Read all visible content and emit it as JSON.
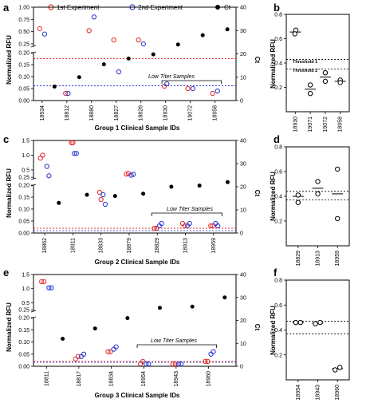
{
  "legend": {
    "first": "1st Experiment",
    "second": "2nd Experiment",
    "ct": "Ct",
    "colors": {
      "first": "#e8312f",
      "second": "#2f3fd0",
      "ct": "#000000"
    }
  },
  "chart_data": [
    {
      "id": "a",
      "panel_label": "a",
      "type": "scatter",
      "xlabel": "Group 1 Clinical Sample IDs",
      "ylabel": "Normalized RFU",
      "y2label": "Ct",
      "categories": [
        "18934",
        "18812",
        "18880",
        "18827",
        "18826",
        "18930",
        "19072",
        "18958"
      ],
      "positions": [
        0,
        2,
        4,
        6,
        8,
        10,
        12,
        14
      ],
      "lower_ylim": [
        0,
        0.2
      ],
      "upper_ylim": [
        0.2,
        1.0
      ],
      "left_ticks": [
        "0.00",
        "0.05",
        "0.10",
        "0.15",
        "0.20",
        "0.25",
        "0.50",
        "0.75",
        "1.00"
      ],
      "ct_ylim": [
        0,
        40
      ],
      "right_ticks": [
        "0",
        "10",
        "20",
        "30",
        "40"
      ],
      "first_experiment": {
        "x": [
          -0.2,
          1.9,
          3.8,
          5.8,
          7.8,
          9.9,
          11.8,
          13.8
        ],
        "y": [
          0.56,
          0.03,
          0.52,
          0.33,
          0.33,
          0.06,
          0.05,
          0.03
        ]
      },
      "second_experiment": {
        "x": [
          0.2,
          2.1,
          4.2,
          6.2,
          8.2,
          10.1,
          12.2,
          14.2
        ],
        "y": [
          0.45,
          0.03,
          0.8,
          0.12,
          0.25,
          0.07,
          0.05,
          0.04
        ]
      },
      "ct": {
        "x": [
          1,
          3,
          5,
          7,
          9,
          11,
          13,
          15
        ],
        "y": [
          6,
          10,
          15.5,
          18,
          19.8,
          24,
          28,
          30.5
        ]
      },
      "threshold_red": 0.175,
      "threshold_blue": 0.065,
      "annotation": "Low Titer Samples",
      "bracket_range": [
        9.7,
        14.5
      ]
    },
    {
      "id": "b",
      "panel_label": "b",
      "type": "scatter",
      "ylabel": "Normalized RFU",
      "categories": [
        "18930",
        "19071",
        "19072",
        "18958"
      ],
      "ylim": [
        0,
        0.8
      ],
      "ticks": [
        "0.2",
        "0.4",
        "0.6",
        "0.8"
      ],
      "points": {
        "x": [
          0.03,
          -0.03,
          1,
          1,
          2,
          2,
          3,
          3
        ],
        "y": [
          0.67,
          0.64,
          0.22,
          0.15,
          0.32,
          0.25,
          0.26,
          0.24
        ]
      },
      "means": [
        0.655,
        0.185,
        0.285,
        0.25
      ],
      "threshold_1": 0.43,
      "threshold_2": 0.35,
      "threshold_labels": [
        "Threshold 1",
        "Threshold 2"
      ]
    },
    {
      "id": "c",
      "panel_label": "c",
      "type": "scatter",
      "xlabel": "Group 2 Clinical Sample IDs",
      "ylabel": "Normalized RFU",
      "y2label": "Ct",
      "categories": [
        "18862",
        "18911",
        "18833",
        "18879",
        "18829",
        "18913",
        "18959"
      ],
      "positions": [
        0,
        2,
        4,
        6,
        8,
        10,
        12
      ],
      "lower_ylim": [
        0,
        0.2
      ],
      "upper_ylim": [
        0.2,
        1.5
      ],
      "left_ticks": [
        "0.00",
        "0.05",
        "0.10",
        "0.15",
        "0.20",
        "0.25",
        "0.5",
        "1.0",
        "1.5"
      ],
      "ct_ylim": [
        0,
        40
      ],
      "right_ticks": [
        "0",
        "10",
        "20",
        "30",
        "40"
      ],
      "first_experiment": {
        "x": [
          -0.3,
          -0.15,
          1.9,
          2.0,
          3.9,
          4.0,
          5.8,
          5.95,
          7.8,
          7.95,
          9.8,
          9.95,
          11.8,
          11.95
        ],
        "y": [
          0.9,
          1.0,
          1.42,
          1.42,
          0.17,
          0.14,
          0.36,
          0.38,
          0.02,
          0.02,
          0.04,
          0.03,
          0.03,
          0.03
        ]
      },
      "second_experiment": {
        "x": [
          0.15,
          0.3,
          2.1,
          2.25,
          4.15,
          4.3,
          6.15,
          6.3,
          8.15,
          8.3,
          10.15,
          10.3,
          12.15,
          12.3
        ],
        "y": [
          0.62,
          0.3,
          1.06,
          1.06,
          0.16,
          0.12,
          0.32,
          0.35,
          0.03,
          0.04,
          0.03,
          0.04,
          0.04,
          0.03
        ]
      },
      "ct": {
        "x": [
          1,
          3,
          5,
          7,
          9,
          11,
          13
        ],
        "y": [
          13,
          16.5,
          16,
          17,
          20,
          20.5,
          22
        ]
      },
      "threshold_red": 0.02,
      "threshold_blue": 0.013,
      "annotation": "Low Titer Samples",
      "bracket_range": [
        7.6,
        12.6
      ]
    },
    {
      "id": "d",
      "panel_label": "d",
      "type": "scatter",
      "ylabel": "Normalized RFU",
      "categories": [
        "18829",
        "18913",
        "18959"
      ],
      "ylim": [
        0,
        0.8
      ],
      "ticks": [
        "0.2",
        "0.4",
        "0.6",
        "0.8"
      ],
      "points": {
        "x": [
          0,
          0,
          1,
          1,
          2,
          2
        ],
        "y": [
          0.41,
          0.35,
          0.52,
          0.42,
          0.62,
          0.22
        ]
      },
      "means": [
        0.4,
        0.465,
        0.42
      ],
      "threshold_1": 0.44,
      "threshold_2": 0.37
    },
    {
      "id": "e",
      "panel_label": "e",
      "type": "scatter",
      "xlabel": "Group 3 Clinical Sample IDs",
      "ylabel": "Normalized RFU",
      "y2label": "Ct",
      "categories": [
        "18811",
        "18817",
        "18834",
        "18954",
        "18943",
        "18960"
      ],
      "positions": [
        0,
        2,
        4,
        6,
        8,
        10
      ],
      "lower_ylim": [
        0,
        0.2
      ],
      "upper_ylim": [
        0.2,
        1.5
      ],
      "left_ticks": [
        "0.00",
        "0.05",
        "0.10",
        "0.15",
        "0.20",
        "0.25",
        "0.5",
        "1.0",
        "1.5"
      ],
      "ct_ylim": [
        0,
        40
      ],
      "right_ticks": [
        "0",
        "10",
        "20",
        "30",
        "40"
      ],
      "first_experiment": {
        "x": [
          -0.3,
          -0.15,
          1.8,
          1.95,
          3.8,
          3.95,
          5.8,
          5.95,
          7.8,
          7.95,
          9.8,
          9.95
        ],
        "y": [
          1.25,
          1.25,
          0.03,
          0.04,
          0.06,
          0.06,
          0.01,
          0.02,
          0.01,
          0.01,
          0.02,
          0.02
        ]
      },
      "second_experiment": {
        "x": [
          0.15,
          0.3,
          2.15,
          2.3,
          4.15,
          4.3,
          6.15,
          6.3,
          8.15,
          8.3,
          10.15,
          10.3
        ],
        "y": [
          1.03,
          1.03,
          0.04,
          0.05,
          0.07,
          0.08,
          0.01,
          0.01,
          0.01,
          0.01,
          0.05,
          0.06
        ]
      },
      "ct": {
        "x": [
          1,
          3,
          5,
          7,
          9,
          11
        ],
        "y": [
          12,
          16.5,
          21,
          25.5,
          26,
          30
        ]
      },
      "threshold_red": 0.02,
      "threshold_blue": 0.02,
      "annotation": "Low Titer Samples",
      "bracket_range": [
        5.6,
        10.5
      ]
    },
    {
      "id": "f",
      "panel_label": "f",
      "type": "scatter",
      "ylabel": "Normalized RFU",
      "categories": [
        "18954",
        "18943",
        "18960"
      ],
      "ylim": [
        0,
        0.8
      ],
      "ticks": [
        "0.2",
        "0.4",
        "0.6",
        "0.8"
      ],
      "points": {
        "x": [
          -0.12,
          0.12,
          0.88,
          1.12,
          1.88,
          2.12
        ],
        "y": [
          0.46,
          0.46,
          0.45,
          0.46,
          0.08,
          0.1
        ]
      },
      "means": [
        0.46,
        0.455,
        0.09
      ],
      "threshold_1": 0.47,
      "threshold_2": 0.37
    }
  ]
}
